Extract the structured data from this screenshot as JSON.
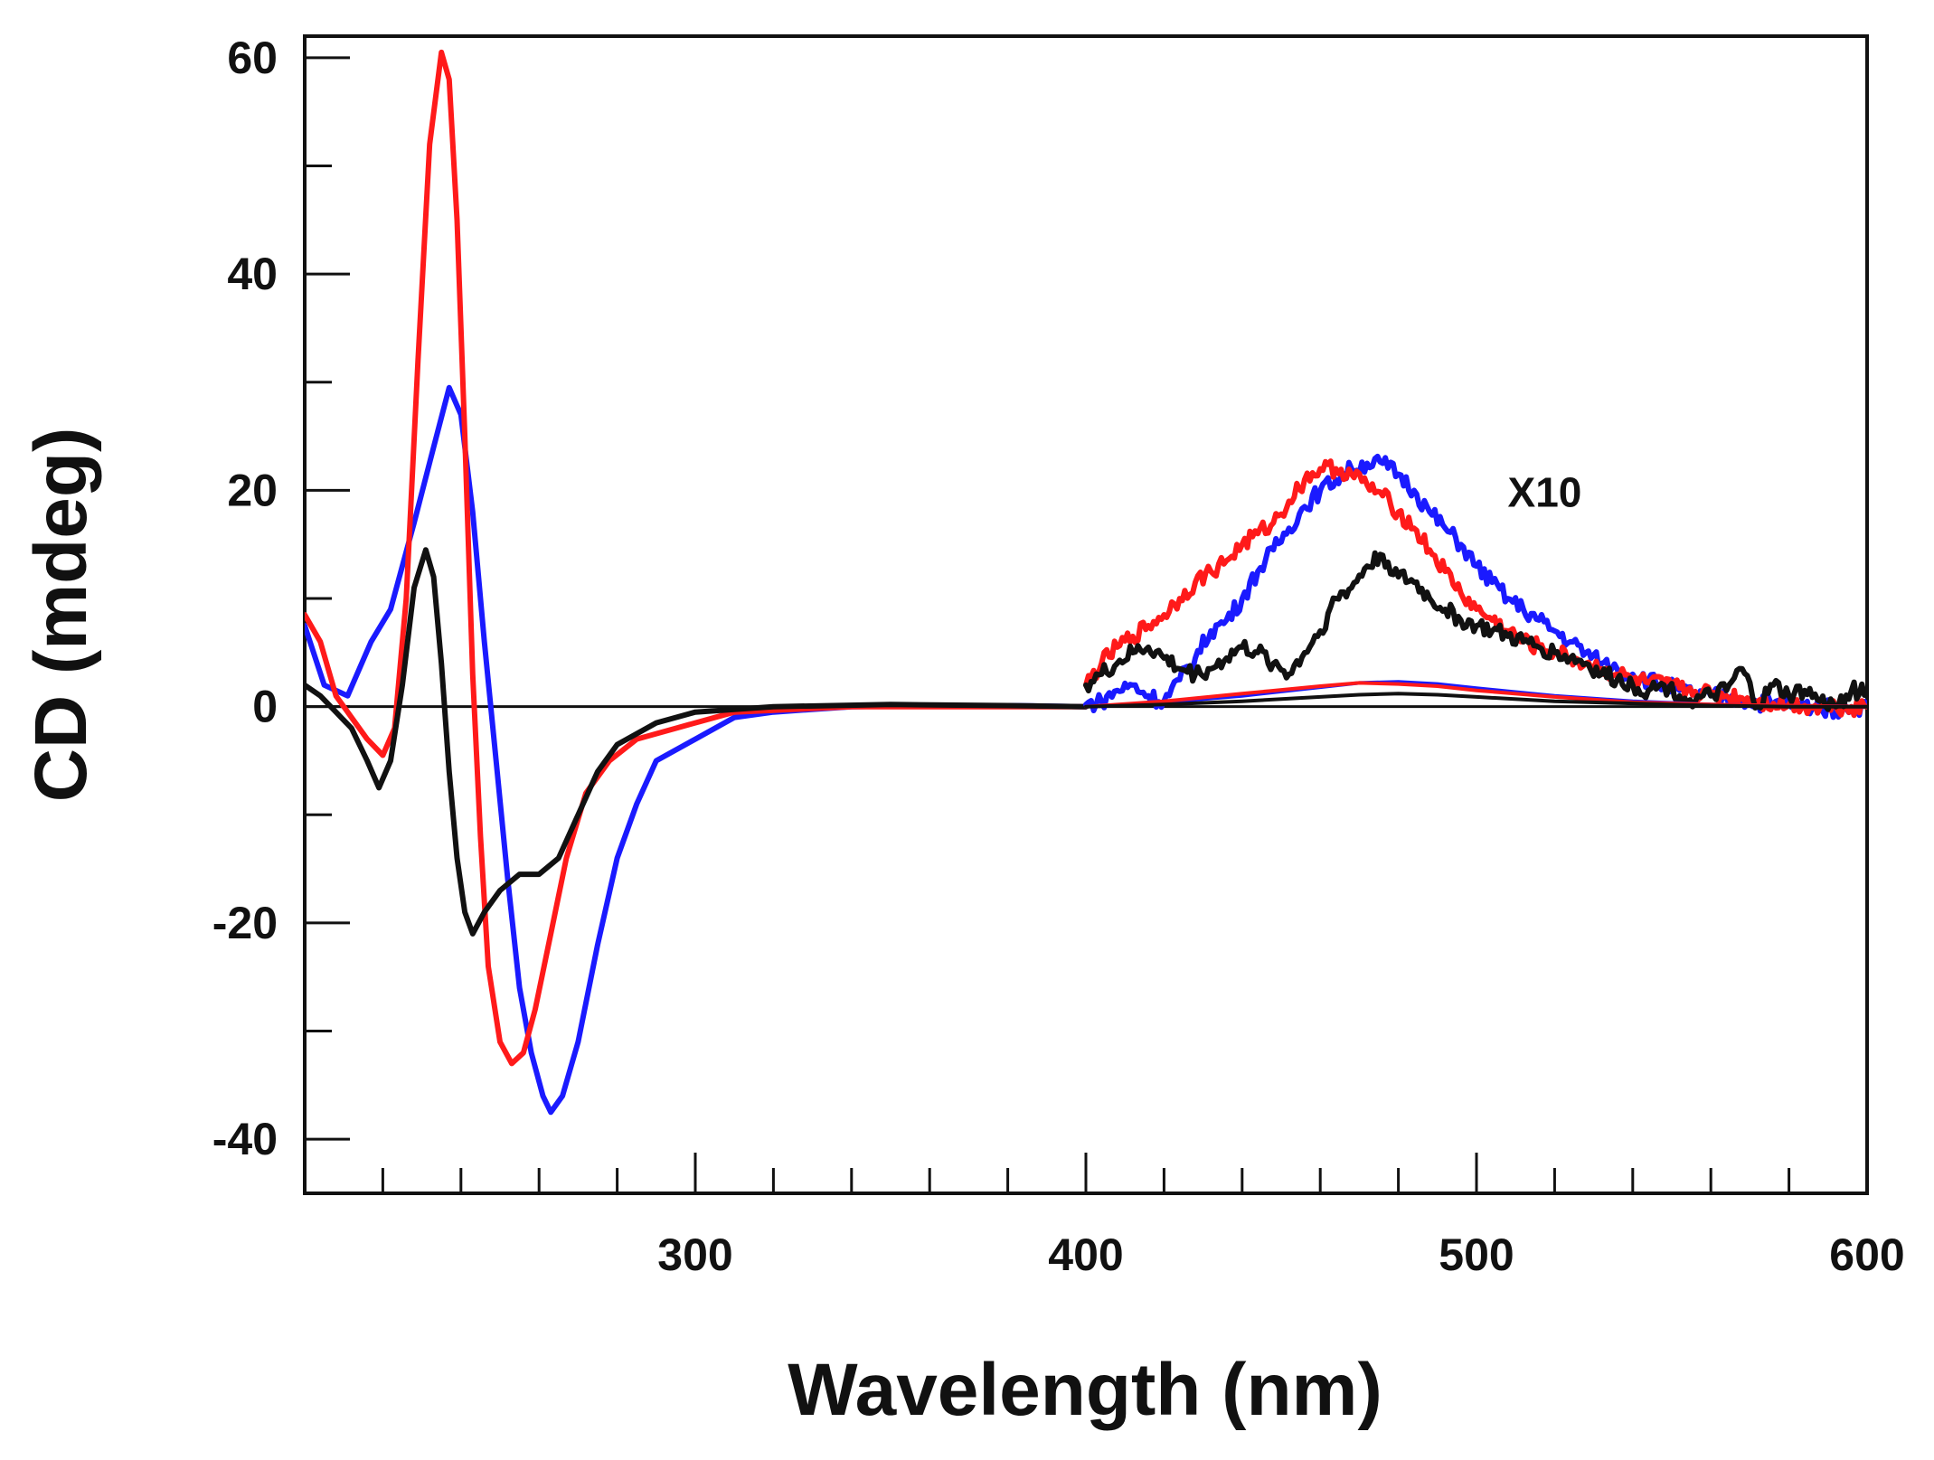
{
  "chart_data": {
    "type": "line",
    "title": "",
    "xlabel": "Wavelength (nm)",
    "ylabel": "CD (mdeg)",
    "xlim": [
      200,
      600
    ],
    "ylim": [
      -45,
      62
    ],
    "x_ticks": [
      300,
      400,
      500,
      600
    ],
    "x_tick_labels": [
      "300",
      "400",
      "500",
      "600"
    ],
    "y_ticks": [
      60,
      40,
      20,
      0,
      -20,
      -40
    ],
    "y_tick_labels": [
      "60",
      "40",
      "20",
      "0",
      "-20",
      "-40"
    ],
    "grid": false,
    "zero_line": true,
    "annotations": [
      {
        "text": "X10",
        "x": 508,
        "y": 18.5
      }
    ],
    "series": [
      {
        "name": "blue",
        "color": "#1a1aff",
        "points": [
          [
            200,
            7.5
          ],
          [
            205,
            2
          ],
          [
            211,
            1
          ],
          [
            217,
            6
          ],
          [
            222,
            9
          ],
          [
            228,
            17
          ],
          [
            233,
            24
          ],
          [
            237,
            29.5
          ],
          [
            240,
            27
          ],
          [
            243,
            18
          ],
          [
            246,
            6
          ],
          [
            249,
            -5
          ],
          [
            252,
            -16
          ],
          [
            255,
            -26
          ],
          [
            258,
            -32
          ],
          [
            261,
            -36
          ],
          [
            263,
            -37.5
          ],
          [
            266,
            -36
          ],
          [
            270,
            -31
          ],
          [
            275,
            -22
          ],
          [
            280,
            -14
          ],
          [
            285,
            -9
          ],
          [
            290,
            -5
          ],
          [
            300,
            -3
          ],
          [
            310,
            -1
          ],
          [
            320,
            -0.5
          ],
          [
            340,
            0
          ],
          [
            360,
            0.1
          ],
          [
            380,
            0.1
          ],
          [
            400,
            0
          ]
        ]
      },
      {
        "name": "red",
        "color": "#ff1a1a",
        "points": [
          [
            200,
            8.5
          ],
          [
            204,
            6
          ],
          [
            208,
            1
          ],
          [
            212,
            -1
          ],
          [
            216,
            -3
          ],
          [
            220,
            -4.5
          ],
          [
            223,
            -2
          ],
          [
            226,
            10
          ],
          [
            229,
            32
          ],
          [
            232,
            52
          ],
          [
            235,
            60.5
          ],
          [
            237,
            58
          ],
          [
            239,
            45
          ],
          [
            241,
            25
          ],
          [
            243,
            3
          ],
          [
            245,
            -12
          ],
          [
            247,
            -24
          ],
          [
            250,
            -31
          ],
          [
            253,
            -33
          ],
          [
            256,
            -32
          ],
          [
            259,
            -28
          ],
          [
            263,
            -21
          ],
          [
            267,
            -14
          ],
          [
            272,
            -8
          ],
          [
            278,
            -5
          ],
          [
            285,
            -3
          ],
          [
            295,
            -2
          ],
          [
            310,
            -0.5
          ],
          [
            340,
            0
          ],
          [
            370,
            0
          ],
          [
            400,
            0
          ]
        ]
      },
      {
        "name": "black",
        "color": "#111111",
        "points": [
          [
            200,
            2
          ],
          [
            204,
            1
          ],
          [
            208,
            -0.5
          ],
          [
            212,
            -2
          ],
          [
            216,
            -5
          ],
          [
            219,
            -7.5
          ],
          [
            222,
            -5
          ],
          [
            225,
            2
          ],
          [
            228,
            11
          ],
          [
            231,
            14.5
          ],
          [
            233,
            12
          ],
          [
            235,
            4
          ],
          [
            237,
            -6
          ],
          [
            239,
            -14
          ],
          [
            241,
            -19
          ],
          [
            243,
            -21
          ],
          [
            246,
            -19
          ],
          [
            250,
            -17
          ],
          [
            255,
            -15.5
          ],
          [
            260,
            -15.5
          ],
          [
            265,
            -14
          ],
          [
            270,
            -10
          ],
          [
            275,
            -6
          ],
          [
            280,
            -3.5
          ],
          [
            290,
            -1.5
          ],
          [
            300,
            -0.5
          ],
          [
            320,
            0
          ],
          [
            350,
            0.2
          ],
          [
            380,
            0.1
          ],
          [
            400,
            0
          ]
        ]
      },
      {
        "name": "blue x10",
        "color": "#1a1aff",
        "points": [
          [
            400,
            0.2
          ],
          [
            404,
            0.5
          ],
          [
            408,
            1.5
          ],
          [
            412,
            2
          ],
          [
            416,
            1
          ],
          [
            420,
            0.5
          ],
          [
            424,
            2.5
          ],
          [
            428,
            4.5
          ],
          [
            432,
            7
          ],
          [
            436,
            8
          ],
          [
            440,
            10
          ],
          [
            444,
            12.5
          ],
          [
            448,
            14.5
          ],
          [
            452,
            16.5
          ],
          [
            456,
            18.5
          ],
          [
            460,
            20
          ],
          [
            464,
            21
          ],
          [
            468,
            22
          ],
          [
            472,
            22.5
          ],
          [
            476,
            22.5
          ],
          [
            480,
            21.5
          ],
          [
            484,
            20
          ],
          [
            488,
            18
          ],
          [
            492,
            16.5
          ],
          [
            496,
            15
          ],
          [
            500,
            13
          ],
          [
            504,
            11.5
          ],
          [
            508,
            10
          ],
          [
            512,
            9
          ],
          [
            516,
            8
          ],
          [
            520,
            7
          ],
          [
            524,
            6
          ],
          [
            528,
            5
          ],
          [
            532,
            4
          ],
          [
            536,
            3.5
          ],
          [
            540,
            3
          ],
          [
            544,
            2.5
          ],
          [
            548,
            2
          ],
          [
            552,
            1.5
          ],
          [
            556,
            1.2
          ],
          [
            560,
            1
          ],
          [
            564,
            0.8
          ],
          [
            568,
            0.6
          ],
          [
            572,
            0.4
          ],
          [
            576,
            0.3
          ],
          [
            580,
            0.2
          ],
          [
            584,
            0.1
          ],
          [
            588,
            0
          ],
          [
            592,
            -0.3
          ],
          [
            596,
            0
          ],
          [
            600,
            0
          ]
        ]
      },
      {
        "name": "red x10",
        "color": "#ff1a1a",
        "points": [
          [
            400,
            2
          ],
          [
            404,
            4
          ],
          [
            408,
            5.5
          ],
          [
            412,
            6.5
          ],
          [
            416,
            7.5
          ],
          [
            420,
            8.5
          ],
          [
            424,
            10
          ],
          [
            428,
            11.5
          ],
          [
            432,
            12.5
          ],
          [
            436,
            13.5
          ],
          [
            440,
            15
          ],
          [
            444,
            16
          ],
          [
            448,
            17
          ],
          [
            452,
            19
          ],
          [
            456,
            21
          ],
          [
            460,
            22
          ],
          [
            464,
            22
          ],
          [
            468,
            21.5
          ],
          [
            472,
            20.5
          ],
          [
            476,
            19.5
          ],
          [
            480,
            18
          ],
          [
            484,
            16.5
          ],
          [
            488,
            14.5
          ],
          [
            492,
            12.5
          ],
          [
            496,
            10.5
          ],
          [
            500,
            9
          ],
          [
            504,
            8
          ],
          [
            508,
            7
          ],
          [
            512,
            6
          ],
          [
            516,
            5.5
          ],
          [
            520,
            5
          ],
          [
            524,
            4.5
          ],
          [
            528,
            4
          ],
          [
            532,
            3.5
          ],
          [
            536,
            3
          ],
          [
            540,
            2.5
          ],
          [
            544,
            2.2
          ],
          [
            548,
            2
          ],
          [
            552,
            1.7
          ],
          [
            556,
            1.4
          ],
          [
            560,
            1.2
          ],
          [
            564,
            1
          ],
          [
            568,
            0.8
          ],
          [
            572,
            0.5
          ],
          [
            576,
            0.3
          ],
          [
            580,
            0.2
          ],
          [
            584,
            0.1
          ],
          [
            588,
            0
          ],
          [
            592,
            0
          ],
          [
            596,
            0
          ],
          [
            600,
            0
          ]
        ]
      },
      {
        "name": "black x10",
        "color": "#111111",
        "points": [
          [
            400,
            2
          ],
          [
            404,
            3
          ],
          [
            408,
            4
          ],
          [
            412,
            5
          ],
          [
            416,
            5.5
          ],
          [
            420,
            4.5
          ],
          [
            424,
            3.5
          ],
          [
            428,
            3
          ],
          [
            432,
            3.5
          ],
          [
            436,
            4.5
          ],
          [
            440,
            5.5
          ],
          [
            444,
            5
          ],
          [
            448,
            4
          ],
          [
            452,
            3
          ],
          [
            456,
            5
          ],
          [
            460,
            7
          ],
          [
            464,
            10
          ],
          [
            468,
            11
          ],
          [
            472,
            13
          ],
          [
            476,
            14
          ],
          [
            480,
            12
          ],
          [
            484,
            11.5
          ],
          [
            488,
            10
          ],
          [
            492,
            9
          ],
          [
            496,
            8
          ],
          [
            500,
            7.5
          ],
          [
            504,
            7
          ],
          [
            508,
            6.5
          ],
          [
            512,
            6
          ],
          [
            516,
            5.5
          ],
          [
            520,
            5
          ],
          [
            524,
            4.5
          ],
          [
            528,
            4
          ],
          [
            532,
            3
          ],
          [
            536,
            2.5
          ],
          [
            540,
            2
          ],
          [
            544,
            1.5
          ],
          [
            548,
            2
          ],
          [
            552,
            1
          ],
          [
            556,
            0.5
          ],
          [
            560,
            1
          ],
          [
            564,
            1.5
          ],
          [
            568,
            3.5
          ],
          [
            572,
            0
          ],
          [
            576,
            2
          ],
          [
            580,
            1
          ],
          [
            584,
            1.5
          ],
          [
            588,
            0.5
          ],
          [
            592,
            0
          ],
          [
            596,
            1.5
          ],
          [
            600,
            1.5
          ]
        ]
      },
      {
        "name": "blue baseline",
        "color": "#1a1aff",
        "points": [
          [
            400,
            0
          ],
          [
            420,
            0.4
          ],
          [
            440,
            1
          ],
          [
            460,
            1.8
          ],
          [
            470,
            2.2
          ],
          [
            480,
            2.3
          ],
          [
            490,
            2.1
          ],
          [
            500,
            1.7
          ],
          [
            520,
            1
          ],
          [
            540,
            0.5
          ],
          [
            560,
            0.2
          ],
          [
            580,
            0.1
          ],
          [
            600,
            0
          ]
        ]
      },
      {
        "name": "red baseline",
        "color": "#ff1a1a",
        "points": [
          [
            400,
            0
          ],
          [
            420,
            0.5
          ],
          [
            440,
            1.2
          ],
          [
            460,
            1.9
          ],
          [
            470,
            2.2
          ],
          [
            480,
            2.1
          ],
          [
            490,
            1.9
          ],
          [
            500,
            1.5
          ],
          [
            520,
            0.9
          ],
          [
            540,
            0.4
          ],
          [
            560,
            0.2
          ],
          [
            580,
            0.1
          ],
          [
            600,
            0
          ]
        ]
      },
      {
        "name": "black baseline",
        "color": "#111111",
        "points": [
          [
            400,
            0
          ],
          [
            420,
            0.2
          ],
          [
            440,
            0.5
          ],
          [
            460,
            0.9
          ],
          [
            470,
            1.1
          ],
          [
            480,
            1.2
          ],
          [
            490,
            1.1
          ],
          [
            500,
            0.9
          ],
          [
            520,
            0.5
          ],
          [
            540,
            0.3
          ],
          [
            560,
            0.1
          ],
          [
            580,
            0
          ],
          [
            600,
            0
          ]
        ]
      }
    ]
  }
}
